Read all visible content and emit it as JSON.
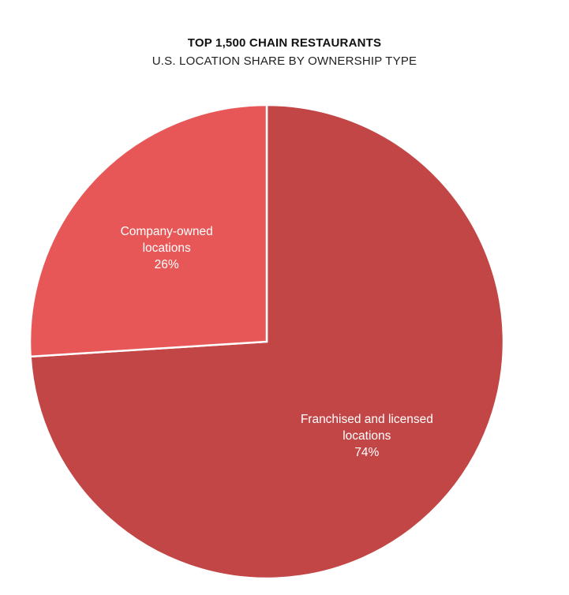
{
  "chart_data": {
    "type": "pie",
    "title": "TOP 1,500 CHAIN RESTAURANTS",
    "subtitle": "U.S. LOCATION SHARE BY OWNERSHIP TYPE",
    "slices": [
      {
        "label_lines": [
          "Franchised and licensed",
          "locations"
        ],
        "value": 74,
        "value_label": "74%",
        "color": "#c34646"
      },
      {
        "label_lines": [
          "Company-owned",
          "locations"
        ],
        "value": 26,
        "value_label": "26%",
        "color": "#e85757"
      }
    ],
    "start_angle_deg": 0,
    "direction": "clockwise",
    "separator_color": "#ffffff"
  }
}
